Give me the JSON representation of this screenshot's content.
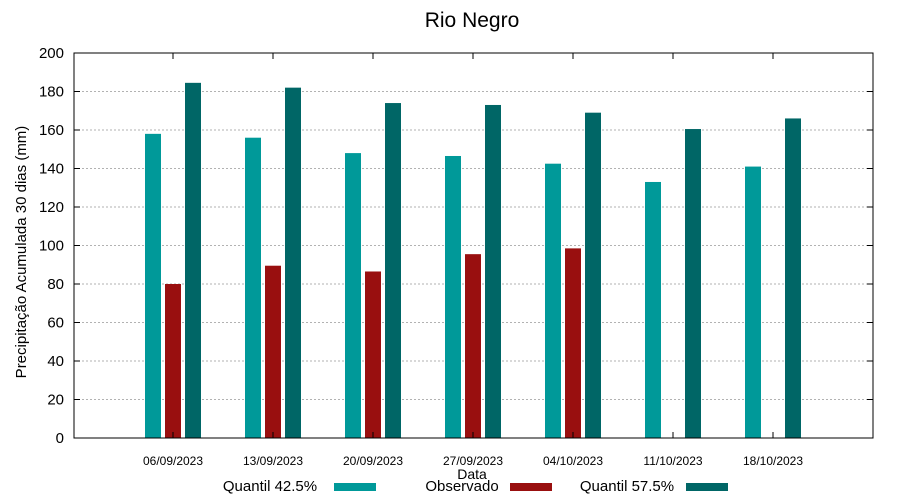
{
  "chart_data": {
    "type": "bar",
    "title": "Rio Negro",
    "xlabel": "Data",
    "ylabel": "Precipitação Acumulada 30 dias (mm)",
    "ylim": [
      0,
      200
    ],
    "yticks": [
      0,
      20,
      40,
      60,
      80,
      100,
      120,
      140,
      160,
      180,
      200
    ],
    "grid": true,
    "legend_position": "bottom",
    "categories": [
      "06/09/2023",
      "13/09/2023",
      "20/09/2023",
      "27/09/2023",
      "04/10/2023",
      "11/10/2023",
      "18/10/2023"
    ],
    "series": [
      {
        "name": "Quantil 42.5%",
        "color": "#009999",
        "values": [
          158,
          156,
          148,
          146.5,
          142.5,
          133,
          141
        ]
      },
      {
        "name": "Observado",
        "color": "#990f0f",
        "values": [
          80,
          89.5,
          86.5,
          95.5,
          98.5,
          null,
          null
        ]
      },
      {
        "name": "Quantil 57.5%",
        "color": "#006666",
        "values": [
          184.5,
          182,
          174,
          173,
          169,
          160.5,
          166
        ]
      }
    ]
  }
}
